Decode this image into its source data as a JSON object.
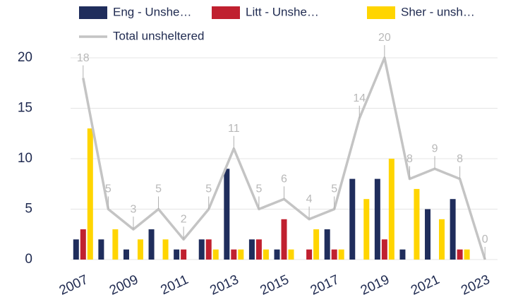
{
  "chart_data": {
    "type": "bar_line",
    "categories": [
      "2007",
      null,
      "2009",
      null,
      "2011",
      null,
      "2013",
      null,
      "2015",
      null,
      "2017",
      null,
      "2019",
      null,
      "2021",
      null,
      "2023"
    ],
    "series": [
      {
        "name": "Eng - Unshe…",
        "color": "#1f2d5c",
        "type": "bar",
        "values": [
          2,
          2,
          1,
          3,
          1,
          2,
          9,
          2,
          1,
          0,
          3,
          8,
          8,
          1,
          5,
          6,
          0
        ]
      },
      {
        "name": "Litt - Unshe…",
        "color": "#c0202f",
        "type": "bar",
        "values": [
          3,
          0,
          0,
          0,
          1,
          2,
          1,
          2,
          4,
          1,
          1,
          0,
          2,
          0,
          0,
          1,
          0
        ]
      },
      {
        "name": "Sher - unsh…",
        "color": "#ffd500",
        "type": "bar",
        "values": [
          13,
          3,
          2,
          2,
          0,
          1,
          1,
          1,
          1,
          3,
          1,
          6,
          10,
          7,
          4,
          1,
          0
        ]
      },
      {
        "name": "Total unsheltered",
        "color": "#c4c4c4",
        "type": "line",
        "values": [
          18,
          5,
          3,
          5,
          2,
          5,
          11,
          5,
          6,
          4,
          5,
          14,
          20,
          8,
          9,
          8,
          0
        ]
      }
    ],
    "ylim": [
      0,
      20
    ],
    "yticks": [
      0,
      5,
      10,
      15,
      20
    ],
    "grid": true
  }
}
